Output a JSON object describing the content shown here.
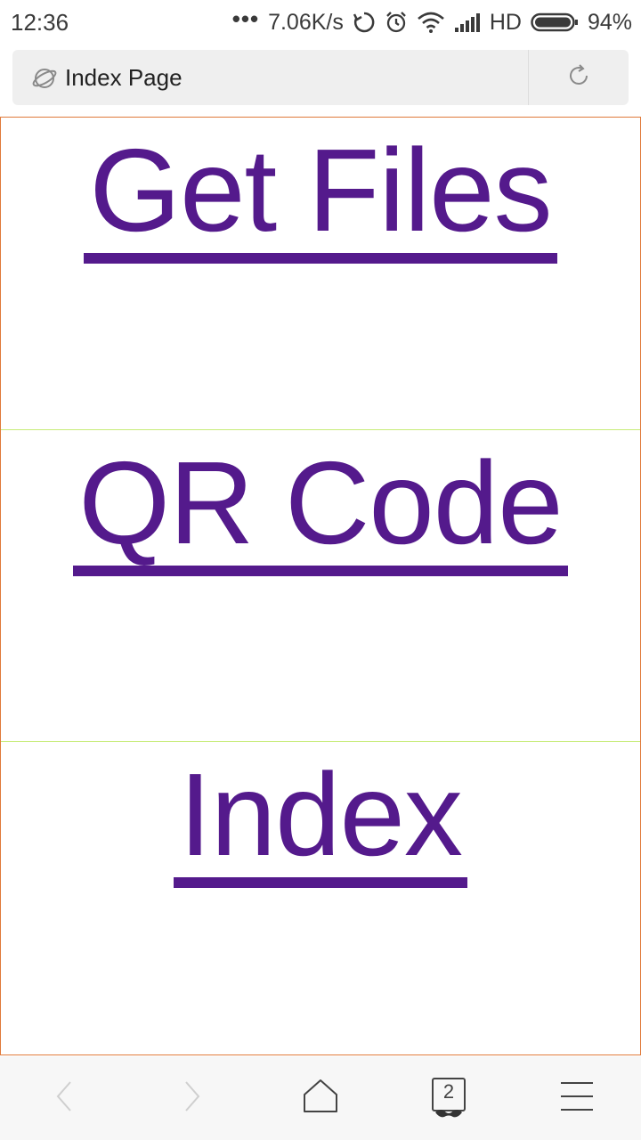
{
  "status_bar": {
    "time": "12:36",
    "network_speed": "7.06K/s",
    "network_type": "HD",
    "battery_percent": "94%",
    "icons": [
      "more-dots-icon",
      "sync-icon",
      "alarm-icon",
      "wifi-icon",
      "signal-icon",
      "battery-icon"
    ]
  },
  "address_bar": {
    "title": "Index Page",
    "icons": [
      "globe-icon",
      "reload-icon"
    ]
  },
  "page": {
    "links": [
      {
        "label": "Get Files"
      },
      {
        "label": "QR Code"
      },
      {
        "label": "Index"
      }
    ],
    "colors": {
      "link": "#541a8c",
      "frame_border": "#e07a3a",
      "section_divider": "#c7ec78"
    }
  },
  "bottom_nav": {
    "tab_count": "2",
    "icons": [
      "back-icon",
      "forward-icon",
      "home-icon",
      "tabs-icon",
      "menu-icon"
    ]
  }
}
